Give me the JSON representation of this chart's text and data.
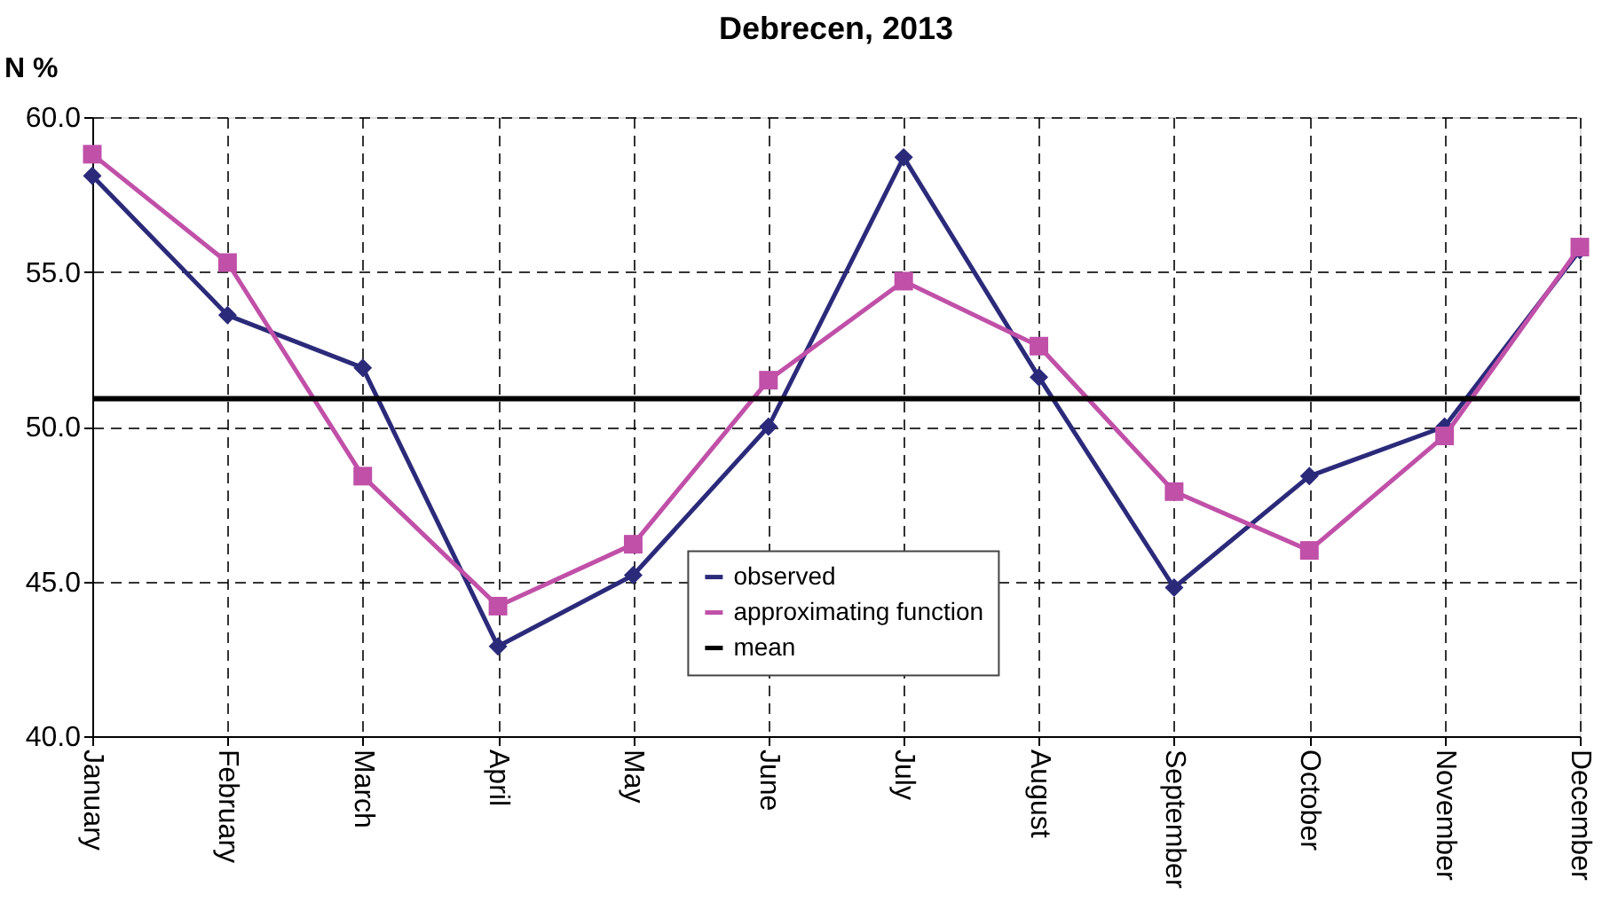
{
  "chart_data": {
    "type": "line",
    "title": "Debrecen, 2013",
    "ylabel": "N %",
    "categories": [
      "January",
      "February",
      "March",
      "April",
      "May",
      "June",
      "July",
      "August",
      "September",
      "October",
      "November",
      "December"
    ],
    "series": [
      {
        "name": "observed",
        "color": "#2b2a7a",
        "marker": "diamond",
        "values": [
          58.1,
          53.6,
          51.9,
          42.9,
          45.2,
          50.0,
          58.7,
          51.6,
          44.8,
          48.4,
          50.0,
          55.7
        ]
      },
      {
        "name": "approximating function",
        "color": "#c050a8",
        "marker": "square",
        "values": [
          58.8,
          55.3,
          48.4,
          44.2,
          46.2,
          51.5,
          54.7,
          52.6,
          47.9,
          46.0,
          49.7,
          55.8
        ]
      }
    ],
    "ref_lines": [
      {
        "axis": "y",
        "value": 50.9,
        "label": "mean",
        "color": "#000000"
      }
    ],
    "ylim": [
      40.0,
      60.0
    ],
    "yticks": [
      {
        "value": 40,
        "label": "40.0"
      },
      {
        "value": 45,
        "label": "45.0"
      },
      {
        "value": 50,
        "label": "50.0"
      },
      {
        "value": 55,
        "label": "55.0"
      },
      {
        "value": 60,
        "label": "60.0"
      }
    ],
    "grid": true,
    "legend": "bottom",
    "line_style": "solid"
  }
}
